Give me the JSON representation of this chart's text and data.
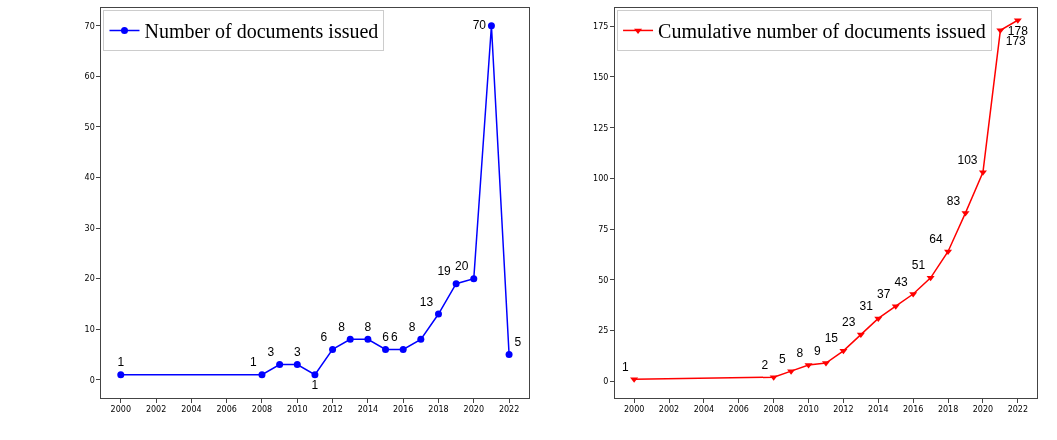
{
  "chart_data": [
    {
      "type": "line",
      "x": [
        2000,
        2008,
        2009,
        2010,
        2011,
        2012,
        2013,
        2014,
        2015,
        2016,
        2017,
        2018,
        2019,
        2020,
        2021,
        2022
      ],
      "series": [
        {
          "name": "Number of documents issued",
          "color": "#0000ff",
          "values": [
            1,
            1,
            3,
            3,
            1,
            6,
            8,
            8,
            6,
            6,
            8,
            13,
            19,
            20,
            70,
            5
          ]
        }
      ],
      "xlim": [
        1998.9,
        2023.1
      ],
      "xticks": [
        2000,
        2002,
        2004,
        2006,
        2008,
        2010,
        2012,
        2014,
        2016,
        2018,
        2020,
        2022
      ],
      "ylim": [
        -3.5,
        73.5
      ],
      "yticks": [
        0,
        10,
        20,
        30,
        40,
        50,
        60,
        70
      ],
      "marker": "circle",
      "line_style": "solid",
      "data_labels": true,
      "legend": "top left"
    },
    {
      "type": "line",
      "x": [
        2000,
        2008,
        2009,
        2010,
        2011,
        2012,
        2013,
        2014,
        2015,
        2016,
        2017,
        2018,
        2019,
        2020,
        2021,
        2022
      ],
      "series": [
        {
          "name": "Cumulative number of documents issued",
          "color": "#ff0000",
          "values": [
            1,
            2,
            5,
            8,
            9,
            15,
            23,
            31,
            37,
            43,
            51,
            64,
            83,
            103,
            173,
            178
          ]
        }
      ],
      "xlim": [
        1998.9,
        2023.1
      ],
      "xticks": [
        2000,
        2002,
        2004,
        2006,
        2008,
        2010,
        2012,
        2014,
        2016,
        2018,
        2020,
        2022
      ],
      "ylim": [
        -8,
        184
      ],
      "yticks": [
        0,
        25,
        50,
        75,
        100,
        125,
        150,
        175
      ],
      "marker": "triangle",
      "line_style": "solid",
      "data_labels": true,
      "legend": "top left"
    }
  ]
}
